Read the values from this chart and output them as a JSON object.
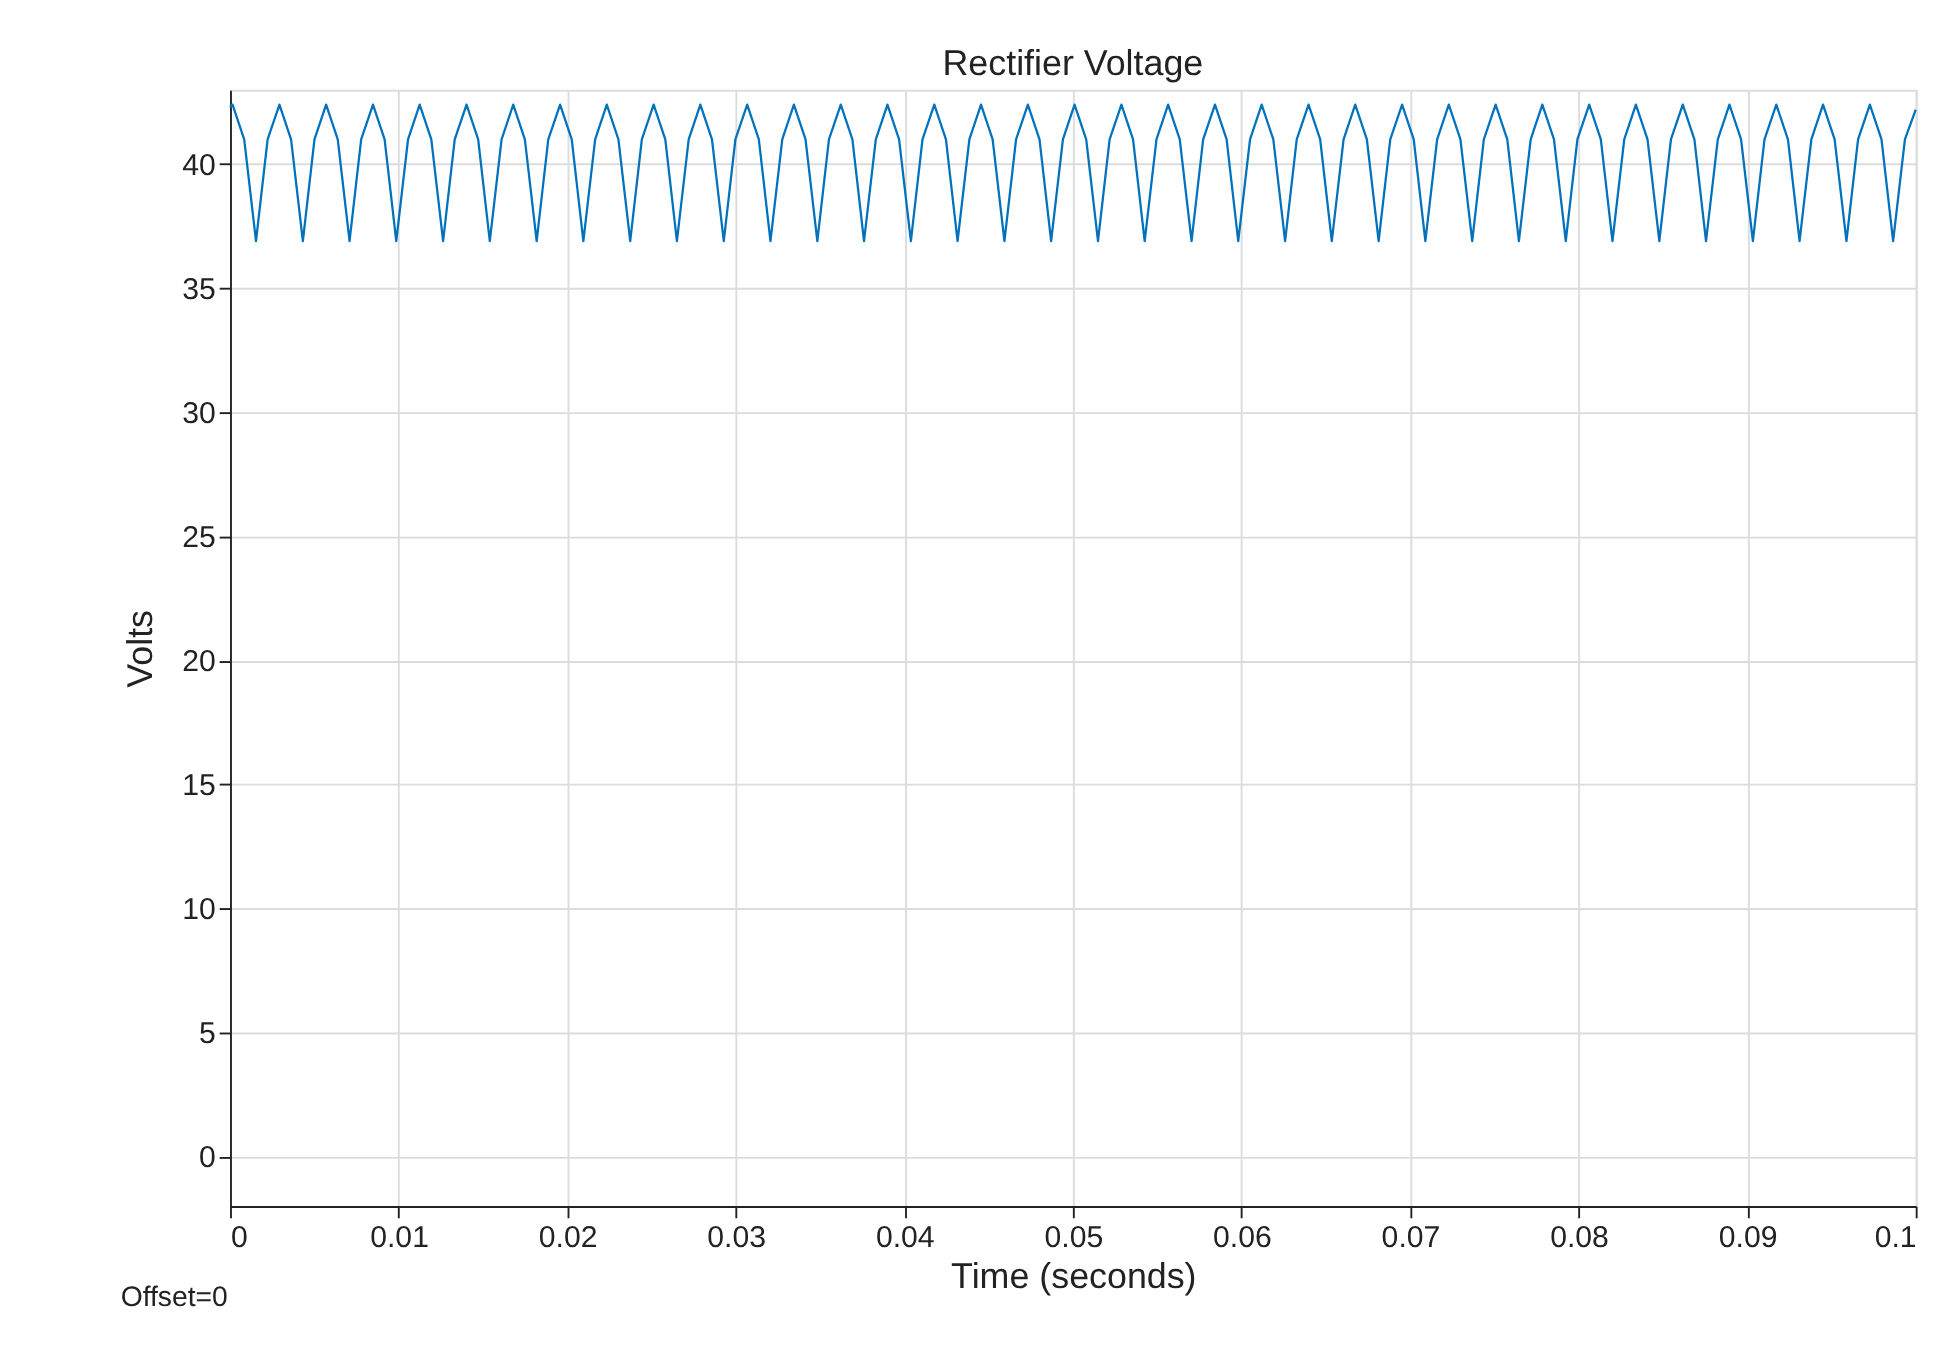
{
  "chart_data": {
    "type": "line",
    "title": "Rectifier Voltage",
    "xlabel": "Time (seconds)",
    "ylabel": "Volts",
    "annotations": [
      "Offset=0"
    ],
    "xlim": [
      0,
      0.1
    ],
    "xticks": [
      0,
      0.01,
      0.02,
      0.03,
      0.04,
      0.05,
      0.06,
      0.07,
      0.08,
      0.09,
      0.1
    ],
    "ylim": [
      -2,
      43
    ],
    "yticks": [
      0,
      5,
      10,
      15,
      20,
      25,
      30,
      35,
      40
    ],
    "grid": true,
    "line_style": "solid",
    "series": [
      {
        "color": "#0072bd",
        "x": [
          0,
          0.00015,
          0.00084,
          0.00154,
          0.00223,
          0.00293,
          0.00362,
          0.00432,
          0.00501,
          0.0057,
          0.00639,
          0.00709,
          0.00778,
          0.00848,
          0.00917,
          0.00986,
          0.01056,
          0.01125,
          0.01194,
          0.01264,
          0.01333,
          0.01403,
          0.01472,
          0.01541,
          0.01611,
          0.0168,
          0.01749,
          0.01819,
          0.01888,
          0.01958,
          0.02027,
          0.02096,
          0.02166,
          0.02235,
          0.02304,
          0.02374,
          0.02443,
          0.02513,
          0.02582,
          0.02651,
          0.02721,
          0.0279,
          0.02859,
          0.02929,
          0.02998,
          0.03068,
          0.03137,
          0.03206,
          0.03276,
          0.03345,
          0.03414,
          0.03484,
          0.03553,
          0.03623,
          0.03692,
          0.03761,
          0.03831,
          0.039,
          0.03969,
          0.04039,
          0.04108,
          0.04178,
          0.04247,
          0.04316,
          0.04386,
          0.04455,
          0.04524,
          0.04594,
          0.04663,
          0.04733,
          0.04802,
          0.04871,
          0.04941,
          0.0501,
          0.05079,
          0.05149,
          0.05218,
          0.05288,
          0.05357,
          0.05426,
          0.05496,
          0.05565,
          0.05634,
          0.05704,
          0.05773,
          0.05843,
          0.05912,
          0.05981,
          0.06051,
          0.0612,
          0.06189,
          0.06259,
          0.06328,
          0.06398,
          0.06467,
          0.06536,
          0.06606,
          0.06675,
          0.06744,
          0.06814,
          0.06883,
          0.06953,
          0.07022,
          0.07091,
          0.07161,
          0.0723,
          0.07299,
          0.07369,
          0.07438,
          0.07508,
          0.07577,
          0.07646,
          0.07716,
          0.07785,
          0.07854,
          0.07924,
          0.07993,
          0.08063,
          0.08132,
          0.08201,
          0.08271,
          0.0834,
          0.08409,
          0.08479,
          0.08548,
          0.08618,
          0.08687,
          0.08756,
          0.08826,
          0.08895,
          0.08964,
          0.09034,
          0.09103,
          0.09173,
          0.09242,
          0.09311,
          0.09381,
          0.0945,
          0.09519,
          0.09589,
          0.09658,
          0.09728,
          0.09797,
          0.09866,
          0.09936,
          0.1
        ],
        "values": [
          42.3,
          42.4,
          41.0,
          36.9,
          41.0,
          42.4,
          41.0,
          36.9,
          41.0,
          42.4,
          41.0,
          36.9,
          41.0,
          42.4,
          41.0,
          36.9,
          41.0,
          42.4,
          41.0,
          36.9,
          41.0,
          42.4,
          41.0,
          36.9,
          41.0,
          42.4,
          41.0,
          36.9,
          41.0,
          42.4,
          41.0,
          36.9,
          41.0,
          42.4,
          41.0,
          36.9,
          41.0,
          42.4,
          41.0,
          36.9,
          41.0,
          42.4,
          41.0,
          36.9,
          41.0,
          42.4,
          41.0,
          36.9,
          41.0,
          42.4,
          41.0,
          36.9,
          41.0,
          42.4,
          41.0,
          36.9,
          41.0,
          42.4,
          41.0,
          36.9,
          41.0,
          42.4,
          41.0,
          36.9,
          41.0,
          42.4,
          41.0,
          36.9,
          41.0,
          42.4,
          41.0,
          36.9,
          41.0,
          42.4,
          41.0,
          36.9,
          41.0,
          42.4,
          41.0,
          36.9,
          41.0,
          42.4,
          41.0,
          36.9,
          41.0,
          42.4,
          41.0,
          36.9,
          41.0,
          42.4,
          41.0,
          36.9,
          41.0,
          42.4,
          41.0,
          36.9,
          41.0,
          42.4,
          41.0,
          36.9,
          41.0,
          42.4,
          41.0,
          36.9,
          41.0,
          42.4,
          41.0,
          36.9,
          41.0,
          42.4,
          41.0,
          36.9,
          41.0,
          42.4,
          41.0,
          36.9,
          41.0,
          42.4,
          41.0,
          36.9,
          41.0,
          42.4,
          41.0,
          36.9,
          41.0,
          42.4,
          41.0,
          36.9,
          41.0,
          42.4,
          41.0,
          36.9,
          41.0,
          42.4,
          41.0,
          36.9,
          41.0,
          42.4,
          41.0,
          36.9,
          41.0,
          42.4,
          41.0,
          36.9,
          41.0,
          42.2
        ]
      }
    ]
  }
}
